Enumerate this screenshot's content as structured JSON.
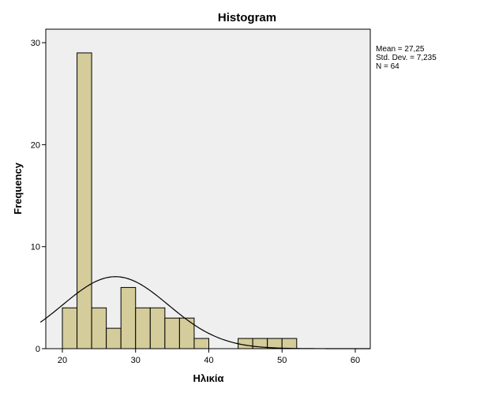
{
  "chart_data": {
    "type": "bar",
    "title": "Histogram",
    "xlabel": "Ηλικία",
    "ylabel": "Frequency",
    "xlim": [
      17,
      62
    ],
    "ylim": [
      0,
      31
    ],
    "x_ticks": [
      20,
      30,
      40,
      50,
      60
    ],
    "y_ticks": [
      0,
      10,
      20,
      30
    ],
    "bin_width": 2,
    "bins": [
      {
        "start": 20,
        "count": 4
      },
      {
        "start": 22,
        "count": 29
      },
      {
        "start": 24,
        "count": 4
      },
      {
        "start": 26,
        "count": 2
      },
      {
        "start": 28,
        "count": 6
      },
      {
        "start": 30,
        "count": 4
      },
      {
        "start": 32,
        "count": 4
      },
      {
        "start": 34,
        "count": 3
      },
      {
        "start": 36,
        "count": 3
      },
      {
        "start": 38,
        "count": 1
      },
      {
        "start": 44,
        "count": 1
      },
      {
        "start": 46,
        "count": 1
      },
      {
        "start": 48,
        "count": 1
      },
      {
        "start": 50,
        "count": 1
      }
    ],
    "normal_curve": {
      "mean": 27.25,
      "std": 7.235,
      "n": 64
    },
    "stats_text": [
      "Mean = 27,25",
      "Std. Dev. = 7,235",
      "N = 64"
    ],
    "colors": {
      "bar_fill": "#d4cc9a",
      "bar_stroke": "#000000",
      "plot_background": "#efefef",
      "curve": "#000000"
    }
  }
}
